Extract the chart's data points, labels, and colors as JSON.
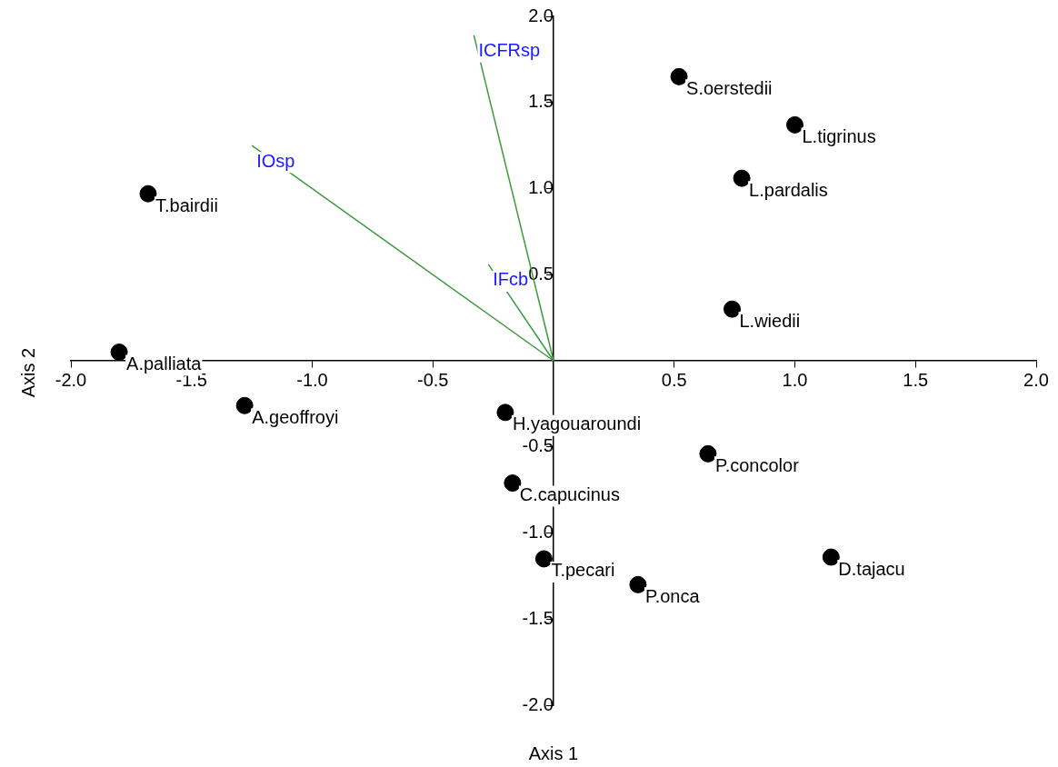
{
  "chart_data": {
    "type": "scatter",
    "xlabel": "Axis 1",
    "ylabel": "Axis 2",
    "xlim": [
      -2,
      2
    ],
    "ylim": [
      -2,
      2
    ],
    "xticks": [
      {
        "value": -2,
        "label": "-2.0"
      },
      {
        "value": -1.5,
        "label": "-1.5"
      },
      {
        "value": -1,
        "label": "-1.0"
      },
      {
        "value": -0.5,
        "label": "-0.5"
      },
      {
        "value": 0.5,
        "label": "0.5"
      },
      {
        "value": 1,
        "label": "1.0"
      },
      {
        "value": 1.5,
        "label": "1.5"
      },
      {
        "value": 2,
        "label": "2.0"
      }
    ],
    "yticks": [
      {
        "value": -2,
        "label": "-2.0"
      },
      {
        "value": -1.5,
        "label": "-1.5"
      },
      {
        "value": -1,
        "label": "-1.0"
      },
      {
        "value": -0.5,
        "label": "-0.5"
      },
      {
        "value": 0.5,
        "label": "0.5"
      },
      {
        "value": 1,
        "label": "1.0"
      },
      {
        "value": 1.5,
        "label": "1.5"
      },
      {
        "value": 2,
        "label": "2.0"
      }
    ],
    "grid": false,
    "legend": false,
    "series": [
      {
        "color": "#000000",
        "marker": "circle",
        "x": [
          0.52,
          1.0,
          0.78,
          -1.68,
          0.74,
          -1.8,
          -1.28,
          -0.2,
          0.64,
          -0.17,
          -0.04,
          0.35,
          1.15
        ],
        "values": [
          1.65,
          1.37,
          1.06,
          0.97,
          0.3,
          0.05,
          -0.26,
          -0.3,
          -0.54,
          -0.71,
          -1.15,
          -1.3,
          -1.14
        ]
      },
      {
        "type": "line",
        "name": "ICFRsp",
        "color": "#3c9a3c",
        "x": [
          0,
          -0.33
        ],
        "values": [
          0,
          1.89
        ]
      },
      {
        "type": "line",
        "name": "IOsp",
        "color": "#3c9a3c",
        "x": [
          0,
          -1.25
        ],
        "values": [
          0,
          1.25
        ]
      },
      {
        "type": "line",
        "name": "IFcb",
        "color": "#3c9a3c",
        "x": [
          0,
          -0.27
        ],
        "values": [
          0,
          0.56
        ]
      }
    ],
    "annotations": [
      {
        "text": "S.oerstedii",
        "x": 0.52,
        "y": 1.65
      },
      {
        "text": "L.tigrinus",
        "x": 1.0,
        "y": 1.37
      },
      {
        "text": "L.pardalis",
        "x": 0.78,
        "y": 1.06
      },
      {
        "text": "T.bairdii",
        "x": -1.68,
        "y": 0.97
      },
      {
        "text": "L.wiedii",
        "x": 0.74,
        "y": 0.3
      },
      {
        "text": "A.palliata",
        "x": -1.8,
        "y": 0.05
      },
      {
        "text": "A.geoffroyi",
        "x": -1.28,
        "y": -0.26
      },
      {
        "text": "H.yagouaroundi",
        "x": -0.2,
        "y": -0.3
      },
      {
        "text": "P.concolor",
        "x": 0.64,
        "y": -0.54
      },
      {
        "text": "C.capucinus",
        "x": -0.17,
        "y": -0.71
      },
      {
        "text": "T.pecari",
        "x": -0.04,
        "y": -1.15
      },
      {
        "text": "P.onca",
        "x": 0.35,
        "y": -1.3
      },
      {
        "text": "D.tajacu",
        "x": 1.15,
        "y": -1.14
      }
    ]
  }
}
